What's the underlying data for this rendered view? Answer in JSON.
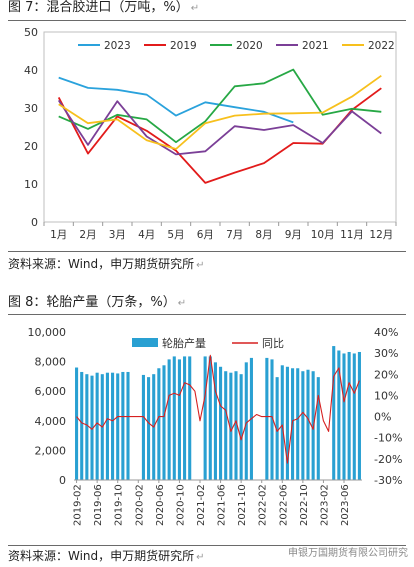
{
  "fig7": {
    "caption": "图 7：混合胶进口（万吨，%）",
    "return_mark": "↵",
    "source": "资料来源：Wind，申万期货研究所",
    "source_mark": "↵"
  },
  "fig8": {
    "caption": "图 8：轮胎产量（万条，%）",
    "return_mark": "↵",
    "source": "资料来源：Wind，申万期货研究所",
    "source_mark": "↵"
  },
  "watermark": "申银万国期货有限公司研究",
  "colors": {
    "s2023": "#2aa2dc",
    "s2019": "#e21b1b",
    "s2020": "#27a845",
    "s2021": "#7b3f97",
    "s2022": "#f7c01d",
    "bar": "#29a0d2",
    "yoy": "#d62020"
  },
  "chart_data": [
    {
      "type": "line",
      "categories": [
        "1月",
        "2月",
        "3月",
        "4月",
        "5月",
        "6月",
        "7月",
        "8月",
        "9月",
        "10月",
        "11月",
        "12月"
      ],
      "ylim": [
        0,
        50
      ],
      "yticks": [
        "0",
        "10",
        "20",
        "30",
        "40",
        "50"
      ],
      "legend_position": "top",
      "series": [
        {
          "name": "2023",
          "color": "#2aa2dc",
          "values": [
            38,
            35.3,
            34.8,
            33.5,
            28,
            31.5,
            30.2,
            29,
            26.2,
            null,
            null,
            null
          ]
        },
        {
          "name": "2019",
          "color": "#e21b1b",
          "values": [
            32.8,
            18,
            27.8,
            24,
            18.8,
            10.3,
            13,
            15.5,
            20.8,
            20.6,
            29.5,
            35.2
          ]
        },
        {
          "name": "2020",
          "color": "#27a845",
          "values": [
            27.8,
            24.5,
            28.2,
            27,
            21,
            26.5,
            35.7,
            36.5,
            40.1,
            28.2,
            29.8,
            29
          ]
        },
        {
          "name": "2021",
          "color": "#7b3f97",
          "values": [
            32,
            20.3,
            31.8,
            22.5,
            17.8,
            18.6,
            25.2,
            24.2,
            25.5,
            20.8,
            29.1,
            23.3
          ]
        },
        {
          "name": "2022",
          "color": "#f7c01d",
          "values": [
            31,
            26,
            27,
            21.5,
            19.2,
            26,
            28,
            28.5,
            28.6,
            28.8,
            33,
            38.5
          ]
        }
      ]
    },
    {
      "type": "bar",
      "ylim": [
        0,
        10000
      ],
      "y2lim": [
        -30,
        40
      ],
      "yticks": [
        "0",
        "2,000",
        "4,000",
        "6,000",
        "8,000",
        "10,000"
      ],
      "y2ticks": [
        "-30%",
        "-20%",
        "-10%",
        "0%",
        "10%",
        "20%",
        "30%",
        "40%"
      ],
      "x_ticks": [
        "2019-02",
        "2019-06",
        "2019-10",
        "2020-02",
        "2020-06",
        "2020-10",
        "2021-02",
        "2021-06",
        "2021-10",
        "2022-02",
        "2022-06",
        "2022-10",
        "2023-02",
        "2023-06"
      ],
      "legend_position": "top",
      "series": [
        {
          "name": "轮胎产量",
          "kind": "bar",
          "color": "#29a0d2",
          "values": [
            7600,
            7300,
            7150,
            7050,
            7250,
            7150,
            7250,
            7250,
            7200,
            7300,
            7300,
            0,
            0,
            7100,
            6950,
            7150,
            7550,
            7750,
            8150,
            8350,
            8150,
            8350,
            8350,
            0,
            0,
            8350,
            8350,
            7950,
            7650,
            7350,
            7250,
            7350,
            7150,
            7950,
            8250,
            0,
            0,
            8250,
            8150,
            6950,
            7750,
            7650,
            7550,
            7550,
            7350,
            7450,
            7350,
            6950,
            0,
            0,
            9050,
            8750,
            8550,
            8650,
            8550,
            8650
          ]
        },
        {
          "name": "同比",
          "kind": "line",
          "color": "#d62020",
          "values": [
            0,
            -3,
            -4,
            -6,
            -3,
            -5,
            -1,
            -2,
            0,
            0,
            0,
            0,
            0,
            0,
            -3,
            -5,
            0,
            0,
            10,
            11,
            10,
            16,
            15,
            12,
            -2,
            10,
            29,
            12,
            5,
            3,
            -7,
            -2,
            -11,
            -3,
            -1,
            1,
            0,
            0,
            0,
            -7,
            -4,
            -22,
            -2,
            -1,
            2,
            -1,
            -6,
            10,
            -2,
            -7,
            19,
            23,
            7,
            16,
            11,
            17
          ]
        }
      ]
    }
  ]
}
